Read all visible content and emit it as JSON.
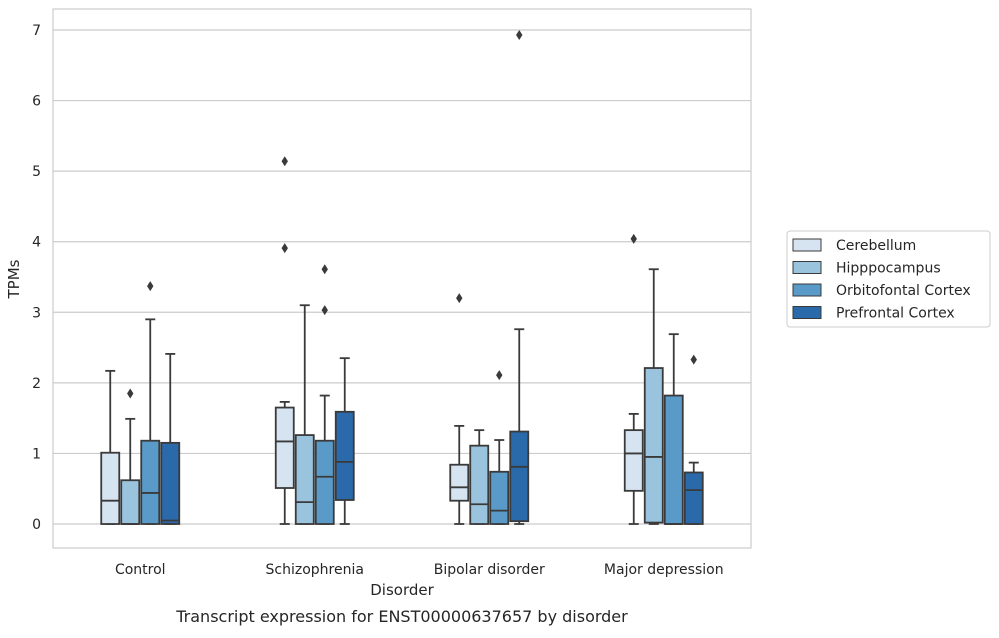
{
  "chart_data": {
    "type": "boxplot",
    "caption": "Transcript expression for ENST00000637657 by disorder",
    "xlabel": "Disorder",
    "ylabel": "TPMs",
    "ylim": [
      -0.33,
      7.3
    ],
    "yticks": [
      0,
      1,
      2,
      3,
      4,
      5,
      6,
      7
    ],
    "grid": "horizontal",
    "legend_position": "outside-right",
    "categories": [
      "Control",
      "Schizophrenia",
      "Bipolar disorder",
      "Major depression"
    ],
    "series": [
      {
        "name": "Cerebellum",
        "color": "#d6e4f2",
        "boxes": [
          {
            "whislo": 0.0,
            "q1": 0.0,
            "med": 0.33,
            "q3": 1.01,
            "whishi": 2.17,
            "fliers": []
          },
          {
            "whislo": 0.0,
            "q1": 0.51,
            "med": 1.17,
            "q3": 1.65,
            "whishi": 1.73,
            "fliers": [
              3.91,
              5.14
            ]
          },
          {
            "whislo": 0.0,
            "q1": 0.33,
            "med": 0.52,
            "q3": 0.84,
            "whishi": 1.39,
            "fliers": [
              3.2
            ]
          },
          {
            "whislo": 0.0,
            "q1": 0.47,
            "med": 1.0,
            "q3": 1.33,
            "whishi": 1.56,
            "fliers": [
              4.04
            ]
          }
        ]
      },
      {
        "name": "Hipppocampus",
        "color": "#9ac3de",
        "boxes": [
          {
            "whislo": 0.0,
            "q1": 0.0,
            "med": 0.0,
            "q3": 0.62,
            "whishi": 1.49,
            "fliers": [
              1.85
            ]
          },
          {
            "whislo": 0.0,
            "q1": 0.0,
            "med": 0.31,
            "q3": 1.26,
            "whishi": 3.1,
            "fliers": []
          },
          {
            "whislo": 0.0,
            "q1": 0.0,
            "med": 0.28,
            "q3": 1.11,
            "whishi": 1.33,
            "fliers": []
          },
          {
            "whislo": 0.0,
            "q1": 0.02,
            "med": 0.95,
            "q3": 2.21,
            "whishi": 3.61,
            "fliers": []
          }
        ]
      },
      {
        "name": "Orbitofontal Cortex",
        "color": "#5a9ac8",
        "boxes": [
          {
            "whislo": 0.0,
            "q1": 0.0,
            "med": 0.44,
            "q3": 1.18,
            "whishi": 2.9,
            "fliers": [
              3.37
            ]
          },
          {
            "whislo": 0.0,
            "q1": 0.0,
            "med": 0.67,
            "q3": 1.18,
            "whishi": 1.82,
            "fliers": [
              3.03,
              3.61
            ]
          },
          {
            "whislo": 0.0,
            "q1": 0.0,
            "med": 0.19,
            "q3": 0.74,
            "whishi": 1.19,
            "fliers": [
              2.11
            ]
          },
          {
            "whislo": 0.0,
            "q1": 0.0,
            "med": 0.0,
            "q3": 1.82,
            "whishi": 2.69,
            "fliers": []
          }
        ]
      },
      {
        "name": "Prefrontal Cortex",
        "color": "#2a6aab",
        "boxes": [
          {
            "whislo": 0.0,
            "q1": 0.0,
            "med": 0.05,
            "q3": 1.15,
            "whishi": 2.41,
            "fliers": []
          },
          {
            "whislo": 0.0,
            "q1": 0.34,
            "med": 0.88,
            "q3": 1.59,
            "whishi": 2.35,
            "fliers": []
          },
          {
            "whislo": 0.0,
            "q1": 0.04,
            "med": 0.81,
            "q3": 1.31,
            "whishi": 2.76,
            "fliers": [
              6.93
            ]
          },
          {
            "whislo": 0.0,
            "q1": 0.0,
            "med": 0.48,
            "q3": 0.73,
            "whishi": 0.87,
            "fliers": [
              2.33
            ]
          }
        ]
      }
    ]
  }
}
